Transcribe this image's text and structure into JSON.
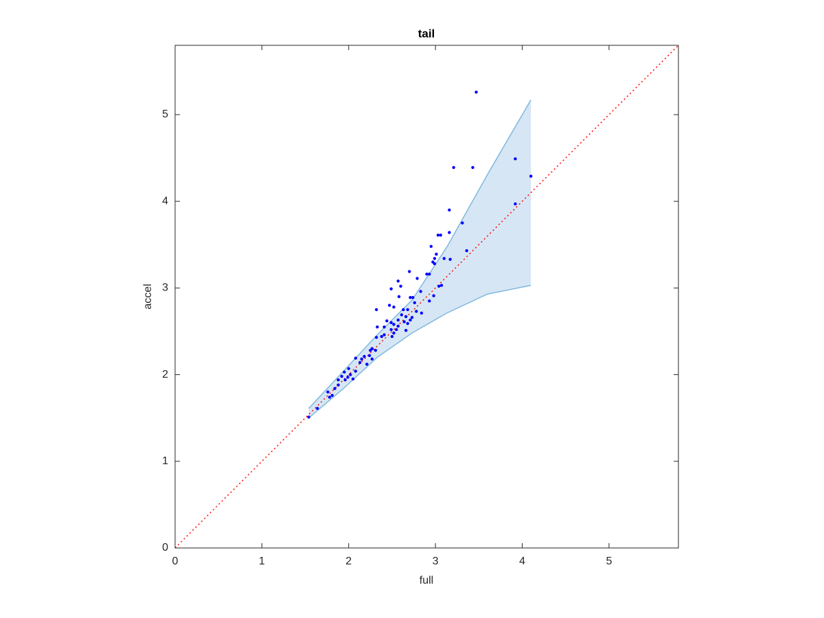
{
  "chart_data": {
    "type": "scatter",
    "title": "tail",
    "x_label": "full",
    "y_label": "accel",
    "xlim": [
      0,
      5.8
    ],
    "ylim": [
      0,
      5.8
    ],
    "xticks": [
      0,
      1,
      2,
      3,
      4,
      5
    ],
    "yticks": [
      0,
      1,
      2,
      3,
      4,
      5
    ],
    "grid": false,
    "band": {
      "color": "#d6e6f4",
      "edge_color": "#7fb8df",
      "x": [
        1.54,
        1.94,
        2.33,
        2.73,
        3.13,
        3.6,
        4.1
      ],
      "upper": [
        1.61,
        2.04,
        2.46,
        2.86,
        3.47,
        4.31,
        5.17
      ],
      "lower": [
        1.5,
        1.84,
        2.2,
        2.48,
        2.71,
        2.93,
        3.03
      ]
    },
    "reference_line": {
      "color": "#ff0000",
      "x": [
        0,
        5.8
      ],
      "y": [
        0,
        5.8
      ]
    },
    "series": [
      {
        "color": "#0000ff",
        "x": [
          3.47,
          3.21,
          3.43,
          3.92,
          4.1,
          3.92,
          3.16,
          3.31,
          3.16,
          3.03,
          3.06,
          3.36,
          2.95,
          3.01,
          2.99,
          3.1,
          3.17,
          2.97,
          2.99,
          2.7,
          2.9,
          2.93,
          2.79,
          2.57,
          2.6,
          3.04,
          3.07,
          2.83,
          2.49,
          2.58,
          2.98,
          2.93,
          2.71,
          2.74,
          2.47,
          2.52,
          2.76,
          2.68,
          2.63,
          2.32,
          2.78,
          2.61,
          2.84,
          2.66,
          2.73,
          2.44,
          2.49,
          2.57,
          2.71,
          2.64,
          2.68,
          2.52,
          2.33,
          2.41,
          2.57,
          2.49,
          2.55,
          2.66,
          2.52,
          2.38,
          2.32,
          2.41,
          2.5,
          2.27,
          2.25,
          2.31,
          2.24,
          2.18,
          2.08,
          2.15,
          2.27,
          2.13,
          2.21,
          2.0,
          2.08,
          1.95,
          2.02,
          1.92,
          1.99,
          2.05,
          1.88,
          1.96,
          1.88,
          1.84,
          1.76,
          1.81,
          1.78,
          1.64,
          1.54
        ],
        "values": [
          5.26,
          4.39,
          4.39,
          4.49,
          4.29,
          3.97,
          3.9,
          3.75,
          3.64,
          3.61,
          3.61,
          3.43,
          3.48,
          3.39,
          3.34,
          3.34,
          3.33,
          3.3,
          3.28,
          3.19,
          3.16,
          3.16,
          3.11,
          3.08,
          3.02,
          3.02,
          3.03,
          2.96,
          2.99,
          2.9,
          2.91,
          2.85,
          2.89,
          2.89,
          2.8,
          2.78,
          2.83,
          2.75,
          2.75,
          2.75,
          2.73,
          2.69,
          2.71,
          2.67,
          2.66,
          2.62,
          2.6,
          2.63,
          2.63,
          2.61,
          2.59,
          2.58,
          2.55,
          2.55,
          2.56,
          2.52,
          2.52,
          2.51,
          2.48,
          2.44,
          2.43,
          2.46,
          2.44,
          2.3,
          2.28,
          2.28,
          2.22,
          2.21,
          2.19,
          2.18,
          2.18,
          2.14,
          2.12,
          2.07,
          2.04,
          2.03,
          2.0,
          1.98,
          1.97,
          1.95,
          1.94,
          1.94,
          1.88,
          1.84,
          1.8,
          1.76,
          1.74,
          1.61,
          1.51
        ]
      }
    ]
  }
}
